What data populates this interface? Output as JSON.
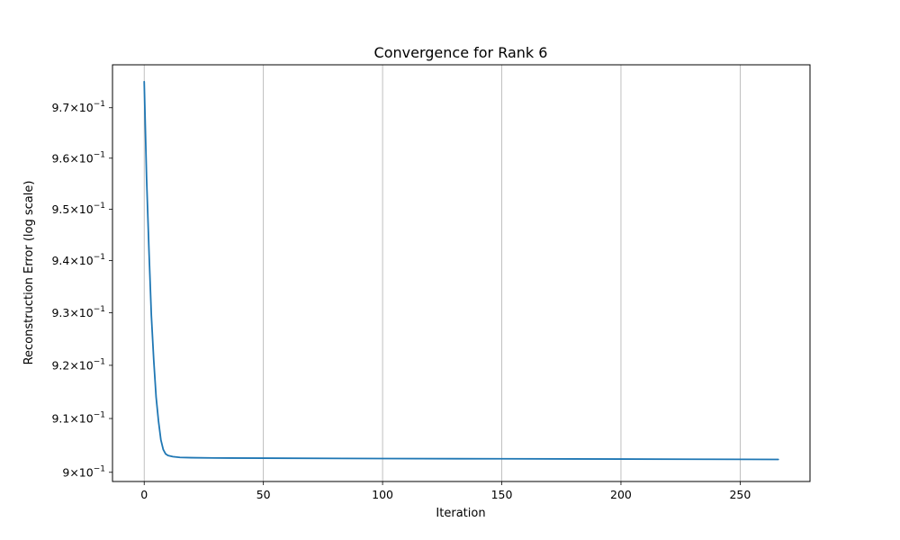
{
  "chart_data": {
    "type": "line",
    "title": "Convergence for Rank 6",
    "xlabel": "Iteration",
    "ylabel": "Reconstruction Error (log scale)",
    "yscale": "log",
    "xlim": [
      -13.3,
      279.3
    ],
    "ylim": [
      0.8983,
      0.9786
    ],
    "x_ticks": [
      0,
      50,
      100,
      150,
      200,
      250
    ],
    "x_tick_labels": [
      "0",
      "50",
      "100",
      "150",
      "200",
      "250"
    ],
    "y_ticks": [
      {
        "value": 0.9,
        "mantissa": "9",
        "base": "10",
        "exponent": "−1"
      },
      {
        "value": 0.91,
        "mantissa": "9.1",
        "base": "10",
        "exponent": "−1"
      },
      {
        "value": 0.92,
        "mantissa": "9.2",
        "base": "10",
        "exponent": "−1"
      },
      {
        "value": 0.93,
        "mantissa": "9.3",
        "base": "10",
        "exponent": "−1"
      },
      {
        "value": 0.94,
        "mantissa": "9.4",
        "base": "10",
        "exponent": "−1"
      },
      {
        "value": 0.95,
        "mantissa": "9.5",
        "base": "10",
        "exponent": "−1"
      },
      {
        "value": 0.96,
        "mantissa": "9.6",
        "base": "10",
        "exponent": "−1"
      },
      {
        "value": 0.97,
        "mantissa": "9.7",
        "base": "10",
        "exponent": "−1"
      }
    ],
    "grid": {
      "x": true,
      "y": false
    },
    "series": [
      {
        "color": "#1f77b4",
        "x": [
          0,
          1,
          2,
          3,
          4,
          5,
          6,
          7,
          8,
          9,
          10,
          12,
          15,
          20,
          30,
          50,
          100,
          150,
          200,
          250,
          266
        ],
        "y": [
          0.9752,
          0.956,
          0.942,
          0.9295,
          0.921,
          0.914,
          0.9095,
          0.906,
          0.9042,
          0.9034,
          0.9031,
          0.9029,
          0.90275,
          0.9027,
          0.90265,
          0.90262,
          0.90255,
          0.9025,
          0.90245,
          0.9024,
          0.90238
        ]
      }
    ]
  }
}
